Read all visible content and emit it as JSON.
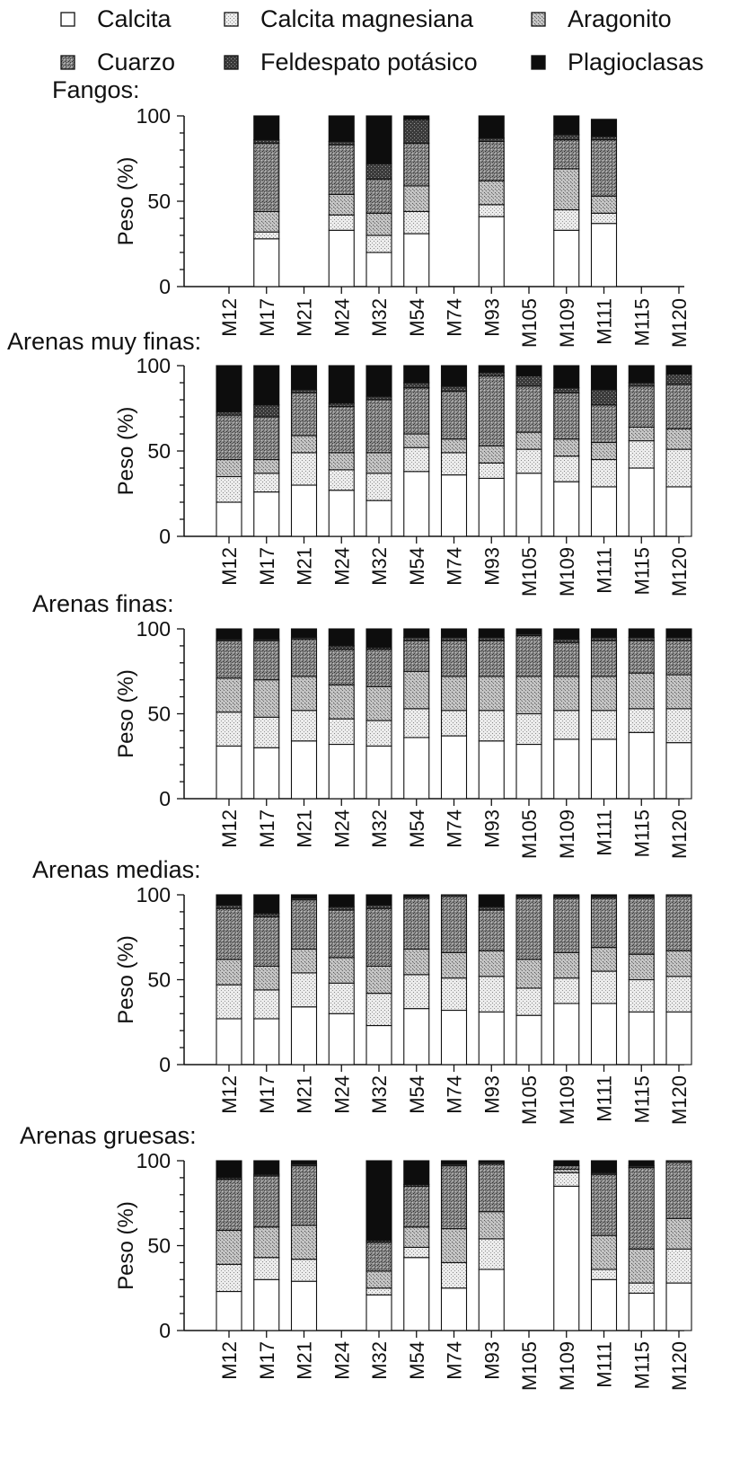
{
  "legend": [
    {
      "name": "Calcita",
      "pattern": "calcita"
    },
    {
      "name": "Calcita magnesiana",
      "pattern": "calcitamg"
    },
    {
      "name": "Aragonito",
      "pattern": "aragonito"
    },
    {
      "name": "Cuarzo",
      "pattern": "cuarzo"
    },
    {
      "name": "Feldespato potásico",
      "pattern": "feldespato"
    },
    {
      "name": "Plagioclasas",
      "pattern": "plagioclasas"
    }
  ],
  "colors": {
    "calcita": "#ffffff",
    "calcitamg": "#e6e6e6",
    "aragonito": "#b8b8b8",
    "cuarzo": "#7a7a7a",
    "feldespato": "#3d3d3d",
    "plagioclasas": "#0d0d0d",
    "axis": "#111111"
  },
  "chart_data": [
    {
      "type": "bar",
      "stacked": true,
      "title": "Fangos:",
      "ylabel": "Peso (%)",
      "ylim": [
        0,
        100
      ],
      "yticks": [
        0,
        50,
        100
      ],
      "categories": [
        "M12",
        "M17",
        "M21",
        "M24",
        "M32",
        "M54",
        "M74",
        "M93",
        "M105",
        "M109",
        "M111",
        "M115",
        "M120"
      ],
      "series": [
        {
          "name": "Calcita",
          "values": [
            0,
            28,
            0,
            33,
            20,
            31,
            0,
            41,
            0,
            33,
            37,
            0,
            0
          ]
        },
        {
          "name": "Calcita magnesiana",
          "values": [
            0,
            4,
            0,
            9,
            10,
            13,
            0,
            7,
            0,
            12,
            6,
            0,
            0
          ]
        },
        {
          "name": "Aragonito",
          "values": [
            0,
            12,
            0,
            12,
            13,
            15,
            0,
            14,
            0,
            24,
            10,
            0,
            0
          ]
        },
        {
          "name": "Cuarzo",
          "values": [
            0,
            40,
            0,
            29,
            20,
            25,
            0,
            23,
            0,
            17,
            33,
            0,
            0
          ]
        },
        {
          "name": "Feldespato potásico",
          "values": [
            0,
            2,
            0,
            2,
            9,
            14,
            0,
            2,
            0,
            3,
            2,
            0,
            0
          ]
        },
        {
          "name": "Plagioclasas",
          "values": [
            0,
            14,
            0,
            15,
            28,
            2,
            0,
            13,
            0,
            11,
            10,
            0,
            0
          ]
        }
      ]
    },
    {
      "type": "bar",
      "stacked": true,
      "title": "Arenas muy finas:",
      "ylabel": "Peso (%)",
      "ylim": [
        0,
        100
      ],
      "yticks": [
        0,
        50,
        100
      ],
      "categories": [
        "M12",
        "M17",
        "M21",
        "M24",
        "M32",
        "M54",
        "M74",
        "M93",
        "M105",
        "M109",
        "M111",
        "M115",
        "M120"
      ],
      "series": [
        {
          "name": "Calcita",
          "values": [
            20,
            26,
            30,
            27,
            21,
            38,
            36,
            34,
            37,
            32,
            29,
            40,
            29
          ]
        },
        {
          "name": "Calcita magnesiana",
          "values": [
            15,
            11,
            19,
            12,
            16,
            14,
            13,
            9,
            14,
            15,
            16,
            16,
            22
          ]
        },
        {
          "name": "Aragonito",
          "values": [
            10,
            8,
            10,
            10,
            12,
            8,
            8,
            10,
            10,
            10,
            10,
            8,
            12
          ]
        },
        {
          "name": "Cuarzo",
          "values": [
            26,
            25,
            25,
            27,
            31,
            27,
            28,
            41,
            27,
            27,
            22,
            24,
            26
          ]
        },
        {
          "name": "Feldespato potásico",
          "values": [
            2,
            7,
            2,
            2,
            2,
            3,
            3,
            2,
            6,
            3,
            9,
            2,
            6
          ]
        },
        {
          "name": "Plagioclasas",
          "values": [
            27,
            23,
            14,
            22,
            18,
            10,
            12,
            4,
            6,
            13,
            14,
            10,
            5
          ]
        }
      ]
    },
    {
      "type": "bar",
      "stacked": true,
      "title": "Arenas finas:",
      "ylabel": "Peso (%)",
      "ylim": [
        0,
        100
      ],
      "yticks": [
        0,
        50,
        100
      ],
      "categories": [
        "M12",
        "M17",
        "M21",
        "M24",
        "M32",
        "M54",
        "M74",
        "M93",
        "M105",
        "M109",
        "M111",
        "M115",
        "M120"
      ],
      "series": [
        {
          "name": "Calcita",
          "values": [
            31,
            30,
            34,
            32,
            31,
            36,
            37,
            34,
            32,
            35,
            35,
            39,
            33
          ]
        },
        {
          "name": "Calcita magnesiana",
          "values": [
            20,
            18,
            18,
            15,
            15,
            17,
            15,
            18,
            18,
            17,
            17,
            14,
            20
          ]
        },
        {
          "name": "Aragonito",
          "values": [
            20,
            22,
            20,
            20,
            20,
            22,
            20,
            20,
            22,
            20,
            20,
            21,
            20
          ]
        },
        {
          "name": "Cuarzo",
          "values": [
            22,
            23,
            22,
            21,
            22,
            18,
            21,
            21,
            24,
            20,
            21,
            19,
            20
          ]
        },
        {
          "name": "Feldespato potásico",
          "values": [
            1,
            1,
            1,
            2,
            1,
            2,
            2,
            2,
            1,
            2,
            2,
            2,
            2
          ]
        },
        {
          "name": "Plagioclasas",
          "values": [
            6,
            6,
            5,
            10,
            11,
            5,
            5,
            5,
            3,
            6,
            5,
            5,
            5
          ]
        }
      ]
    },
    {
      "type": "bar",
      "stacked": true,
      "title": "Arenas medias:",
      "ylabel": "Peso (%)",
      "ylim": [
        0,
        100
      ],
      "yticks": [
        0,
        50,
        100
      ],
      "categories": [
        "M12",
        "M17",
        "M21",
        "M24",
        "M32",
        "M54",
        "M74",
        "M93",
        "M105",
        "M109",
        "M111",
        "M115",
        "M120"
      ],
      "series": [
        {
          "name": "Calcita",
          "values": [
            27,
            27,
            34,
            30,
            23,
            33,
            32,
            31,
            29,
            36,
            36,
            31,
            31
          ]
        },
        {
          "name": "Calcita magnesiana",
          "values": [
            20,
            17,
            20,
            18,
            19,
            20,
            19,
            21,
            16,
            15,
            19,
            19,
            21
          ]
        },
        {
          "name": "Aragonito",
          "values": [
            15,
            14,
            14,
            15,
            16,
            15,
            15,
            15,
            17,
            15,
            14,
            15,
            15
          ]
        },
        {
          "name": "Cuarzo",
          "values": [
            30,
            29,
            29,
            28,
            34,
            30,
            33,
            24,
            36,
            32,
            29,
            33,
            32
          ]
        },
        {
          "name": "Feldespato potásico",
          "values": [
            2,
            2,
            1,
            2,
            2,
            1,
            1,
            2,
            1,
            1,
            1,
            1,
            1
          ]
        },
        {
          "name": "Plagioclasas",
          "values": [
            6,
            11,
            2,
            7,
            6,
            1,
            0,
            7,
            1,
            1,
            1,
            1,
            0
          ]
        }
      ]
    },
    {
      "type": "bar",
      "stacked": true,
      "title": "Arenas gruesas:",
      "ylabel": "Peso (%)",
      "ylim": [
        0,
        100
      ],
      "yticks": [
        0,
        50,
        100
      ],
      "categories": [
        "M12",
        "M17",
        "M21",
        "M24",
        "M32",
        "M54",
        "M74",
        "M93",
        "M105",
        "M109",
        "M111",
        "M115",
        "M120"
      ],
      "series": [
        {
          "name": "Calcita",
          "values": [
            23,
            30,
            29,
            0,
            21,
            43,
            25,
            36,
            0,
            85,
            30,
            22,
            28
          ]
        },
        {
          "name": "Calcita magnesiana",
          "values": [
            16,
            13,
            13,
            0,
            4,
            6,
            15,
            18,
            0,
            8,
            6,
            6,
            20
          ]
        },
        {
          "name": "Aragonito",
          "values": [
            20,
            18,
            20,
            0,
            10,
            12,
            20,
            16,
            0,
            2,
            20,
            20,
            18
          ]
        },
        {
          "name": "Cuarzo",
          "values": [
            30,
            30,
            35,
            0,
            17,
            24,
            37,
            28,
            0,
            2,
            36,
            48,
            33
          ]
        },
        {
          "name": "Feldespato potásico",
          "values": [
            1,
            1,
            1,
            0,
            1,
            1,
            1,
            1,
            0,
            0,
            1,
            1,
            1
          ]
        },
        {
          "name": "Plagioclasas",
          "values": [
            10,
            8,
            2,
            0,
            47,
            14,
            2,
            1,
            0,
            3,
            7,
            3,
            0
          ]
        }
      ]
    }
  ]
}
